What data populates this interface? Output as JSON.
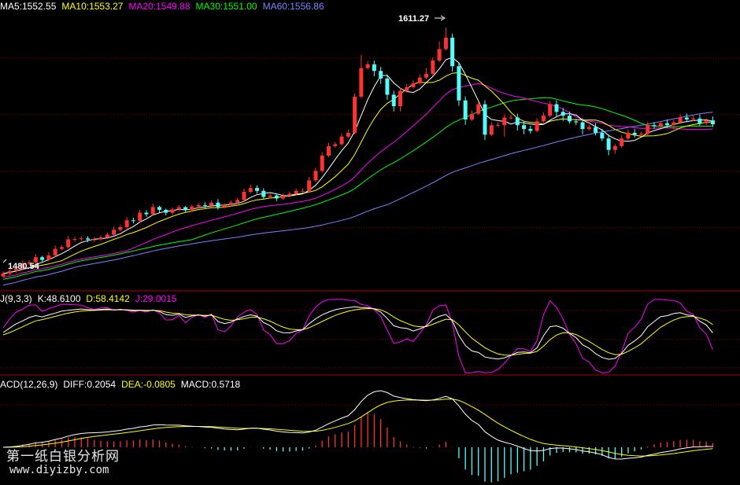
{
  "colors": {
    "up": "#ff3232",
    "down": "#54fcfc",
    "ma5": "#ffffff",
    "ma10": "#ffff00",
    "ma20": "#ff00ff",
    "ma30": "#00ff00",
    "ma60": "#8080ff",
    "kdj_k": "#ffffff",
    "kdj_d": "#ffff00",
    "kdj_j": "#ff00ff",
    "macd_diff": "#ffffff",
    "macd_dea": "#ffff00",
    "grid": "#8b0000"
  },
  "legend_main": [
    {
      "text": "MA5:1552.55",
      "color": "#ffffff"
    },
    {
      "text": "MA10:1553.27",
      "color": "#ffff00"
    },
    {
      "text": "MA20:1549.88",
      "color": "#ff00ff"
    },
    {
      "text": "MA30:1551.00",
      "color": "#00ff00"
    },
    {
      "text": "MA60:1556.86",
      "color": "#8080ff"
    }
  ],
  "legend_kdj": [
    {
      "text": "J(9,3,3)",
      "color": "#ffffff"
    },
    {
      "text": "K:48.6100",
      "color": "#ffffff"
    },
    {
      "text": "D:58.4142",
      "color": "#ffff00"
    },
    {
      "text": "J:29.0015",
      "color": "#ff00ff"
    }
  ],
  "legend_macd": [
    {
      "text": "ACD(12,26,9)",
      "color": "#ffffff"
    },
    {
      "text": "DIFF:0.2054",
      "color": "#ffffff"
    },
    {
      "text": "DEA:-0.0805",
      "color": "#ffff00"
    },
    {
      "text": "MACD:0.5718",
      "color": "#ffffff"
    }
  ],
  "annotations": {
    "high": "1611.27",
    "low": "1480.54"
  },
  "watermark": {
    "line1": "第一纸白银分析网",
    "line2": "www.diyizby.com"
  },
  "chart_data": {
    "type": "candlestick",
    "price_range": [
      1475,
      1620
    ],
    "candles": [
      [
        1480.5,
        1482.0,
        1483.1,
        1479.9
      ],
      [
        1482.0,
        1483.3,
        1484.4,
        1481.2
      ],
      [
        1483.3,
        1484.6,
        1485.7,
        1482.5
      ],
      [
        1484.6,
        1487.3,
        1489.0,
        1483.8
      ],
      [
        1487.3,
        1487.9,
        1489.0,
        1486.5
      ],
      [
        1487.9,
        1490.6,
        1492.3,
        1487.1
      ],
      [
        1490.6,
        1489.2,
        1491.4,
        1487.8
      ],
      [
        1489.2,
        1491.6,
        1493.3,
        1488.4
      ],
      [
        1491.6,
        1495.0,
        1496.7,
        1490.8
      ],
      [
        1495.0,
        1495.9,
        1497.0,
        1494.2
      ],
      [
        1495.9,
        1500.0,
        1501.7,
        1495.1
      ],
      [
        1500.0,
        1500.2,
        1501.3,
        1498.8
      ],
      [
        1500.2,
        1500.5,
        1501.6,
        1499.1
      ],
      [
        1500.5,
        1499.9,
        1501.6,
        1498.5
      ],
      [
        1499.9,
        1500.0,
        1501.1,
        1498.6
      ],
      [
        1500.0,
        1501.0,
        1502.1,
        1499.2
      ],
      [
        1501.0,
        1502.5,
        1503.6,
        1500.2
      ],
      [
        1502.5,
        1505.0,
        1506.7,
        1501.7
      ],
      [
        1505.0,
        1506.4,
        1507.5,
        1504.2
      ],
      [
        1506.4,
        1510.0,
        1511.7,
        1505.6
      ],
      [
        1510.0,
        1509.8,
        1511.4,
        1508.4
      ],
      [
        1509.8,
        1514.0,
        1515.7,
        1509.0
      ],
      [
        1514.0,
        1513.2,
        1515.3,
        1511.8
      ],
      [
        1513.2,
        1517.0,
        1518.7,
        1512.4
      ],
      [
        1517.0,
        1515.5,
        1517.6,
        1514.1
      ],
      [
        1515.5,
        1514.0,
        1516.1,
        1512.6
      ],
      [
        1514.0,
        1515.7,
        1516.8,
        1512.8
      ],
      [
        1515.7,
        1516.9,
        1518.0,
        1514.9
      ],
      [
        1516.9,
        1515.4,
        1517.5,
        1514.0
      ],
      [
        1515.4,
        1517.2,
        1518.3,
        1514.6
      ],
      [
        1517.2,
        1518.0,
        1519.1,
        1516.4
      ],
      [
        1518.0,
        1517.8,
        1519.5,
        1516.4
      ],
      [
        1517.8,
        1519.3,
        1520.4,
        1517.0
      ],
      [
        1519.3,
        1517.0,
        1521.1,
        1515.6
      ],
      [
        1517.0,
        1518.0,
        1519.1,
        1516.2
      ],
      [
        1518.0,
        1519.3,
        1520.4,
        1517.2
      ],
      [
        1519.3,
        1520.7,
        1521.8,
        1518.5
      ],
      [
        1520.7,
        1525.0,
        1526.7,
        1519.9
      ],
      [
        1525.0,
        1527.0,
        1528.7,
        1524.2
      ],
      [
        1527.0,
        1525.5,
        1528.3,
        1524.1
      ],
      [
        1525.5,
        1522.3,
        1526.9,
        1520.9
      ],
      [
        1522.3,
        1523.0,
        1524.1,
        1521.5
      ],
      [
        1523.0,
        1521.5,
        1524.1,
        1520.1
      ],
      [
        1521.5,
        1522.9,
        1524.0,
        1520.7
      ],
      [
        1522.9,
        1524.0,
        1525.1,
        1522.1
      ],
      [
        1524.0,
        1525.5,
        1526.6,
        1523.2
      ],
      [
        1525.5,
        1525.5,
        1526.9,
        1524.7
      ],
      [
        1525.5,
        1531.0,
        1532.7,
        1524.7
      ],
      [
        1531.0,
        1536.0,
        1537.7,
        1530.2
      ],
      [
        1536.0,
        1544.0,
        1545.7,
        1535.2
      ],
      [
        1544.0,
        1549.0,
        1550.7,
        1543.2
      ],
      [
        1549.0,
        1550.0,
        1551.1,
        1548.2
      ],
      [
        1550.0,
        1554.0,
        1555.7,
        1549.2
      ],
      [
        1554.0,
        1556.0,
        1557.7,
        1553.2
      ],
      [
        1556.0,
        1575.0,
        1576.7,
        1555.2
      ],
      [
        1575.0,
        1590.0,
        1597.0,
        1574.2
      ],
      [
        1590.0,
        1592.0,
        1593.7,
        1589.2
      ],
      [
        1592.0,
        1588.5,
        1593.9,
        1585.7
      ],
      [
        1588.5,
        1584.5,
        1590.6,
        1581.7
      ],
      [
        1584.5,
        1576.0,
        1586.6,
        1573.2
      ],
      [
        1576.0,
        1570.0,
        1578.1,
        1567.2
      ],
      [
        1570.0,
        1578.0,
        1579.7,
        1567.2
      ],
      [
        1578.0,
        1580.0,
        1581.7,
        1577.2
      ],
      [
        1580.0,
        1582.0,
        1583.7,
        1579.2
      ],
      [
        1582.0,
        1585.0,
        1586.7,
        1581.2
      ],
      [
        1585.0,
        1587.0,
        1590.0,
        1584.2
      ],
      [
        1587.0,
        1594.0,
        1595.7,
        1586.2
      ],
      [
        1594.0,
        1600.0,
        1604.0,
        1593.2
      ],
      [
        1600.0,
        1606.0,
        1611.3,
        1599.2
      ],
      [
        1606.0,
        1591.0,
        1608.1,
        1588.2
      ],
      [
        1591.0,
        1573.0,
        1593.1,
        1570.2
      ],
      [
        1573.0,
        1563.0,
        1575.1,
        1560.2
      ],
      [
        1563.0,
        1566.0,
        1567.7,
        1562.2
      ],
      [
        1566.0,
        1571.0,
        1572.7,
        1565.2
      ],
      [
        1571.0,
        1555.0,
        1573.1,
        1552.2
      ],
      [
        1555.0,
        1560.0,
        1561.7,
        1554.2
      ],
      [
        1560.0,
        1560.0,
        1561.4,
        1559.2
      ],
      [
        1560.0,
        1564.0,
        1565.7,
        1554.0
      ],
      [
        1564.0,
        1564.0,
        1565.4,
        1563.2
      ],
      [
        1564.0,
        1560.0,
        1566.1,
        1557.2
      ],
      [
        1560.0,
        1558.0,
        1562.1,
        1555.2
      ],
      [
        1558.0,
        1557.0,
        1559.8,
        1555.6
      ],
      [
        1557.0,
        1562.0,
        1563.7,
        1556.2
      ],
      [
        1562.0,
        1565.0,
        1566.7,
        1561.2
      ],
      [
        1565.0,
        1571.0,
        1572.7,
        1564.2
      ],
      [
        1571.0,
        1567.0,
        1573.1,
        1564.2
      ],
      [
        1567.0,
        1565.0,
        1569.1,
        1562.2
      ],
      [
        1565.0,
        1562.0,
        1567.1,
        1560.8
      ],
      [
        1562.0,
        1561.5,
        1563.4,
        1560.1
      ],
      [
        1561.5,
        1558.0,
        1563.6,
        1555.2
      ],
      [
        1558.0,
        1559.0,
        1560.1,
        1557.2
      ],
      [
        1559.0,
        1556.0,
        1561.1,
        1554.6
      ],
      [
        1556.0,
        1553.0,
        1558.1,
        1551.6
      ],
      [
        1553.0,
        1547.0,
        1555.1,
        1544.2
      ],
      [
        1547.0,
        1549.0,
        1550.1,
        1545.0
      ],
      [
        1549.0,
        1553.0,
        1554.7,
        1548.2
      ],
      [
        1553.0,
        1556.0,
        1557.7,
        1552.2
      ],
      [
        1556.0,
        1555.0,
        1558.1,
        1553.6
      ],
      [
        1555.0,
        1555.5,
        1556.6,
        1554.2
      ],
      [
        1555.5,
        1560.0,
        1561.7,
        1554.7
      ],
      [
        1560.0,
        1559.5,
        1561.6,
        1558.1
      ],
      [
        1559.5,
        1561.0,
        1562.1,
        1558.7
      ],
      [
        1561.0,
        1560.0,
        1563.0,
        1558.6
      ],
      [
        1560.0,
        1561.5,
        1562.6,
        1558.0
      ],
      [
        1561.5,
        1564.0,
        1565.7,
        1560.7
      ],
      [
        1564.0,
        1563.0,
        1566.1,
        1561.6
      ],
      [
        1563.0,
        1563.5,
        1565.0,
        1562.2
      ],
      [
        1563.5,
        1561.0,
        1565.6,
        1559.6
      ],
      [
        1561.0,
        1562.5,
        1563.6,
        1560.2
      ],
      [
        1562.5,
        1560.5,
        1564.6,
        1559.1
      ]
    ],
    "ma_values": {
      "MA5": 1552.55,
      "MA10": 1553.27,
      "MA20": 1549.88,
      "MA30": 1551.0,
      "MA60": 1556.86
    },
    "kdj_values": {
      "K": 48.61,
      "D": 58.4142,
      "J": 29.0015
    },
    "macd_values": {
      "DIFF": 0.2054,
      "DEA": -0.0805,
      "MACD": 0.5718
    }
  }
}
